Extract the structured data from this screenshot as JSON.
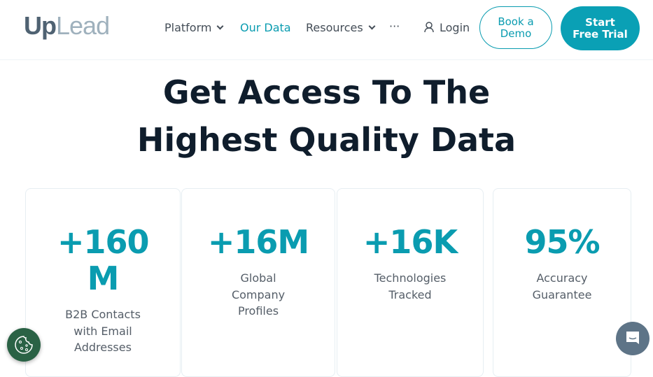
{
  "header": {
    "logo": {
      "up": "Up",
      "lead": "Lead"
    },
    "nav": [
      {
        "label": "Platform"
      },
      {
        "label": "Our Data"
      },
      {
        "label": "Resources"
      },
      {
        "label": "···"
      }
    ],
    "login": "Login",
    "book_demo": [
      "Book a",
      "Demo"
    ],
    "start_trial": [
      "Start",
      "Free Trial"
    ]
  },
  "hero": {
    "title_line1": "Get Access To The",
    "title_line2": "Highest Quality Data"
  },
  "stats": [
    {
      "value": "+160 M",
      "label": "B2B Contacts with Email Addresses"
    },
    {
      "value": "+16M",
      "label": "Global Company Profiles"
    },
    {
      "value": "+16K",
      "label": "Technologies Tracked"
    },
    {
      "value": "95%",
      "label": "Accuracy Guarantee"
    }
  ],
  "colors": {
    "accent": "#0aa0b5",
    "heading": "#0f1d2c",
    "cookie": "#2a6245",
    "chat": "#5e7487"
  },
  "icons": {
    "cookie": "cookie-icon",
    "chat": "chat-icon",
    "user": "user-icon"
  }
}
